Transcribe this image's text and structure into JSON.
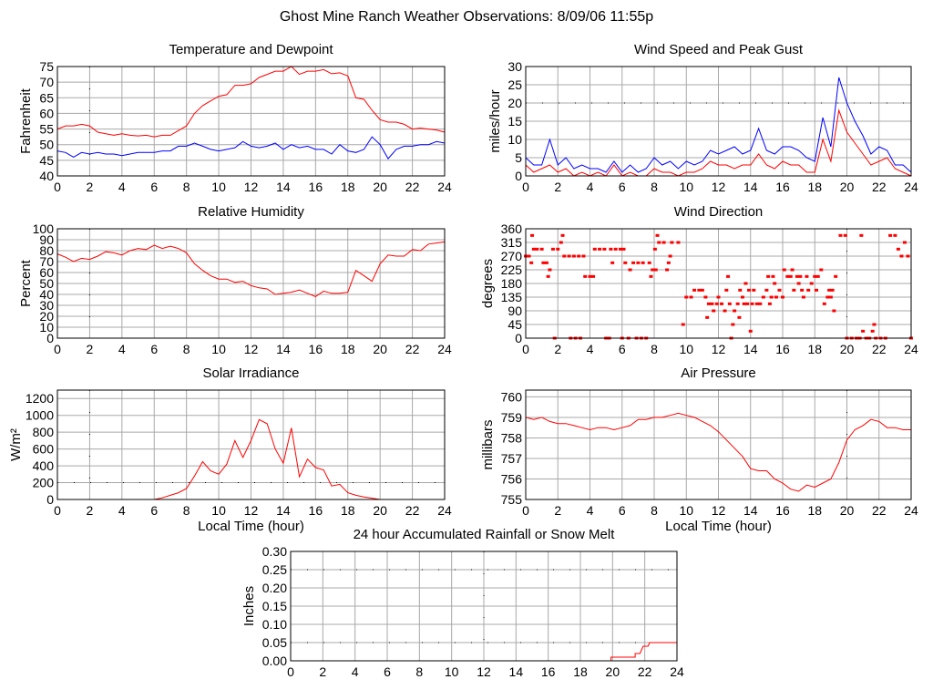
{
  "page_title": "Ghost Mine Ranch Weather Observations: 8/09/06 11:55p",
  "colors": {
    "primary_series": "#ff0000",
    "secondary_series": "#0000ff",
    "grid": "#a8a8a8"
  },
  "chart_data": [
    {
      "id": "temperature",
      "type": "line",
      "title": "Temperature and Dewpoint",
      "xlabel": "",
      "ylabel": "Fahrenheit",
      "xlim": [
        0,
        24
      ],
      "ylim": [
        40,
        75
      ],
      "xticks": [
        "0",
        "2",
        "4",
        "6",
        "8",
        "10",
        "12",
        "14",
        "16",
        "18",
        "20",
        "22",
        "24"
      ],
      "yticks": [
        "40",
        "45",
        "50",
        "55",
        "60",
        "65",
        "70",
        "75"
      ],
      "dotted_x": [
        2
      ],
      "dotted_y": [],
      "x_step": 0.5,
      "series": [
        {
          "name": "Temperature",
          "color": "#ff0000",
          "values": [
            55,
            56,
            56,
            56.5,
            56,
            54,
            53.5,
            53,
            53.5,
            53,
            52.8,
            53,
            52.5,
            53,
            53,
            54.5,
            56,
            60,
            62.5,
            64,
            65.5,
            66,
            69,
            69,
            69.5,
            71.5,
            72.5,
            73.5,
            73.5,
            75,
            72.5,
            73.5,
            73.5,
            74,
            72.7,
            73,
            72,
            65,
            64.5,
            61,
            58,
            57.2,
            57.2,
            56.5,
            55,
            55.3,
            55,
            54.7,
            54
          ]
        },
        {
          "name": "Dewpoint",
          "color": "#0000ff",
          "values": [
            48,
            47.5,
            46,
            47.5,
            47,
            47.5,
            47,
            47,
            46.5,
            47,
            47.5,
            47.5,
            47.5,
            48,
            48,
            49.5,
            49.5,
            50.5,
            49.5,
            48.5,
            48,
            48.5,
            49,
            51,
            49.5,
            49,
            49.5,
            50.5,
            48.5,
            50,
            49,
            49.5,
            48.5,
            48.5,
            47,
            50,
            48,
            47.5,
            48.5,
            52.5,
            50,
            45.5,
            48.5,
            49.5,
            49.5,
            50,
            50,
            51,
            50.5
          ]
        }
      ]
    },
    {
      "id": "wind-speed",
      "type": "line",
      "title": "Wind Speed and Peak Gust",
      "xlabel": "",
      "ylabel": "miles/hour",
      "xlim": [
        0,
        24
      ],
      "ylim": [
        0,
        30
      ],
      "xticks": [
        "0",
        "2",
        "4",
        "6",
        "8",
        "10",
        "12",
        "14",
        "16",
        "18",
        "20",
        "22",
        "24"
      ],
      "yticks": [
        "0",
        "5",
        "10",
        "15",
        "20",
        "25",
        "30"
      ],
      "dotted_x": [],
      "dotted_y": [
        20
      ],
      "x_step": 0.5,
      "series": [
        {
          "name": "Peak Gust",
          "color": "#0000ff",
          "values": [
            5,
            3,
            3,
            10,
            3,
            5,
            2,
            3,
            2,
            2,
            1,
            4,
            1,
            3,
            1,
            2,
            5,
            3,
            4,
            2,
            4,
            3,
            4,
            7,
            6,
            7,
            8,
            6,
            7,
            13,
            7,
            6,
            8,
            8,
            7,
            5,
            4,
            16,
            8,
            27,
            20,
            15,
            11,
            6,
            8,
            7,
            3,
            3,
            1
          ]
        },
        {
          "name": "Wind Speed",
          "color": "#ff0000",
          "values": [
            3,
            1,
            2,
            3,
            1,
            2,
            0,
            1,
            0,
            1,
            0,
            3,
            0,
            1,
            0,
            0,
            2,
            1,
            1,
            0,
            1,
            1,
            2,
            4,
            3,
            3,
            2,
            3,
            3,
            6,
            3,
            2,
            4,
            3,
            3,
            1,
            1,
            10,
            4,
            18,
            12,
            9,
            6,
            3,
            4,
            5,
            2,
            1,
            0
          ]
        }
      ]
    },
    {
      "id": "humidity",
      "type": "line",
      "title": "Relative Humidity",
      "xlabel": "",
      "ylabel": "Percent",
      "xlim": [
        0,
        24
      ],
      "ylim": [
        0,
        100
      ],
      "xticks": [
        "0",
        "2",
        "4",
        "6",
        "8",
        "10",
        "12",
        "14",
        "16",
        "18",
        "20",
        "22",
        "24"
      ],
      "yticks": [
        "0",
        "10",
        "20",
        "30",
        "40",
        "50",
        "60",
        "70",
        "80",
        "90",
        "100"
      ],
      "dotted_x": [
        2
      ],
      "dotted_y": [],
      "x_step": 0.5,
      "series": [
        {
          "name": "Relative Humidity",
          "color": "#ff0000",
          "values": [
            77,
            74,
            70,
            73,
            72,
            75,
            79,
            78,
            76,
            80,
            82,
            81,
            85,
            82,
            84,
            82,
            78,
            68,
            62,
            57,
            54,
            54,
            51,
            52,
            48,
            46,
            45,
            40,
            41,
            42,
            44,
            41,
            38,
            43,
            41,
            41,
            42,
            62,
            57,
            52,
            68,
            76,
            75,
            75,
            81,
            80,
            86,
            87,
            88
          ]
        }
      ]
    },
    {
      "id": "wind-direction",
      "type": "scatter",
      "title": "Wind Direction",
      "xlabel": "",
      "ylabel": "degrees",
      "xlim": [
        0,
        24
      ],
      "ylim": [
        0,
        360
      ],
      "xticks": [
        "0",
        "2",
        "4",
        "6",
        "8",
        "10",
        "12",
        "14",
        "16",
        "18",
        "20",
        "22",
        "24"
      ],
      "yticks": [
        "0",
        "45",
        "90",
        "135",
        "180",
        "225",
        "270",
        "315",
        "360"
      ],
      "dotted_x": [
        20
      ],
      "dotted_y": [],
      "points": [
        [
          0,
          270
        ],
        [
          0.2,
          270
        ],
        [
          0.35,
          248
        ],
        [
          0.4,
          338
        ],
        [
          0.5,
          293
        ],
        [
          0.7,
          293
        ],
        [
          1,
          293
        ],
        [
          1.1,
          248
        ],
        [
          1.3,
          248
        ],
        [
          1.4,
          203
        ],
        [
          1.5,
          225
        ],
        [
          1.7,
          293
        ],
        [
          1.8,
          0
        ],
        [
          2,
          293
        ],
        [
          2.2,
          315
        ],
        [
          2.3,
          338
        ],
        [
          2.4,
          270
        ],
        [
          2.7,
          270
        ],
        [
          2.8,
          0
        ],
        [
          3,
          270
        ],
        [
          3.1,
          0
        ],
        [
          3.3,
          270
        ],
        [
          3.4,
          0
        ],
        [
          3.6,
          270
        ],
        [
          3.7,
          203
        ],
        [
          4,
          203
        ],
        [
          4.2,
          203
        ],
        [
          4.3,
          293
        ],
        [
          4.6,
          293
        ],
        [
          4.9,
          293
        ],
        [
          5,
          0
        ],
        [
          5.2,
          0
        ],
        [
          5.3,
          293
        ],
        [
          5.4,
          248
        ],
        [
          5.6,
          293
        ],
        [
          5.9,
          293
        ],
        [
          6,
          0
        ],
        [
          6.1,
          293
        ],
        [
          6.2,
          248
        ],
        [
          6.4,
          0
        ],
        [
          6.5,
          225
        ],
        [
          6.7,
          248
        ],
        [
          6.9,
          0
        ],
        [
          7,
          248
        ],
        [
          7.2,
          0
        ],
        [
          7.3,
          248
        ],
        [
          7.5,
          0
        ],
        [
          7.7,
          248
        ],
        [
          7.8,
          203
        ],
        [
          7.9,
          225
        ],
        [
          8.05,
          293
        ],
        [
          8.1,
          225
        ],
        [
          8.2,
          338
        ],
        [
          8.3,
          315
        ],
        [
          8.6,
          315
        ],
        [
          8.8,
          225
        ],
        [
          8.9,
          248
        ],
        [
          9,
          270
        ],
        [
          9.1,
          315
        ],
        [
          9.5,
          315
        ],
        [
          9.8,
          45
        ],
        [
          10,
          135
        ],
        [
          10.3,
          135
        ],
        [
          10.5,
          158
        ],
        [
          10.8,
          158
        ],
        [
          11,
          158
        ],
        [
          11.2,
          135
        ],
        [
          11.3,
          68
        ],
        [
          11.4,
          113
        ],
        [
          11.6,
          113
        ],
        [
          11.7,
          90
        ],
        [
          11.9,
          113
        ],
        [
          12,
          135
        ],
        [
          12.2,
          113
        ],
        [
          12.4,
          90
        ],
        [
          12.5,
          158
        ],
        [
          12.6,
          203
        ],
        [
          12.7,
          113
        ],
        [
          12.8,
          0
        ],
        [
          12.9,
          45
        ],
        [
          13,
          90
        ],
        [
          13.2,
          113
        ],
        [
          13.3,
          68
        ],
        [
          13.35,
          158
        ],
        [
          13.5,
          135
        ],
        [
          13.6,
          113
        ],
        [
          13.7,
          180
        ],
        [
          13.8,
          113
        ],
        [
          13.9,
          158
        ],
        [
          14,
          23
        ],
        [
          14.1,
          113
        ],
        [
          14.2,
          158
        ],
        [
          14.4,
          113
        ],
        [
          14.6,
          113
        ],
        [
          14.8,
          135
        ],
        [
          15,
          158
        ],
        [
          15.1,
          203
        ],
        [
          15.2,
          113
        ],
        [
          15.3,
          135
        ],
        [
          15.4,
          203
        ],
        [
          15.5,
          180
        ],
        [
          15.6,
          135
        ],
        [
          15.8,
          158
        ],
        [
          16,
          135
        ],
        [
          16.1,
          225
        ],
        [
          16.3,
          203
        ],
        [
          16.5,
          203
        ],
        [
          16.6,
          225
        ],
        [
          16.7,
          158
        ],
        [
          16.9,
          203
        ],
        [
          17,
          180
        ],
        [
          17.1,
          203
        ],
        [
          17.2,
          158
        ],
        [
          17.3,
          135
        ],
        [
          17.5,
          203
        ],
        [
          17.6,
          158
        ],
        [
          17.8,
          180
        ],
        [
          18,
          203
        ],
        [
          18.1,
          158
        ],
        [
          18.2,
          203
        ],
        [
          18.4,
          225
        ],
        [
          18.6,
          113
        ],
        [
          18.8,
          135
        ],
        [
          18.9,
          158
        ],
        [
          19,
          135
        ],
        [
          19.1,
          158
        ],
        [
          19.2,
          90
        ],
        [
          19.3,
          203
        ],
        [
          19.6,
          338
        ],
        [
          19.9,
          338
        ],
        [
          20,
          0
        ],
        [
          20.3,
          0
        ],
        [
          20.6,
          0
        ],
        [
          20.8,
          0
        ],
        [
          20.9,
          338
        ],
        [
          21,
          23
        ],
        [
          21.2,
          0
        ],
        [
          21.4,
          0
        ],
        [
          21.6,
          23
        ],
        [
          21.7,
          45
        ],
        [
          21.8,
          0
        ],
        [
          22.1,
          0
        ],
        [
          22.4,
          0
        ],
        [
          22.7,
          338
        ],
        [
          23,
          338
        ],
        [
          23.2,
          293
        ],
        [
          23.4,
          270
        ],
        [
          23.6,
          315
        ],
        [
          23.8,
          270
        ],
        [
          24,
          0
        ]
      ],
      "color": "#ff0000"
    },
    {
      "id": "solar",
      "type": "line",
      "title": "Solar Irradiance",
      "xlabel": "Local Time (hour)",
      "ylabel": "W/m²",
      "xlim": [
        0,
        24
      ],
      "ylim": [
        0,
        1300
      ],
      "xticks": [
        "0",
        "2",
        "4",
        "6",
        "8",
        "10",
        "12",
        "14",
        "16",
        "18",
        "20",
        "22",
        "24"
      ],
      "yticks": [
        "0",
        "200",
        "400",
        "600",
        "800",
        "1000",
        "1200"
      ],
      "dotted_x": [
        2
      ],
      "dotted_y": [
        200
      ],
      "x_step": 0.5,
      "series": [
        {
          "name": "Solar Irradiance",
          "color": "#ff0000",
          "values": [
            0,
            0,
            0,
            0,
            0,
            0,
            0,
            0,
            0,
            0,
            0,
            0,
            0,
            20,
            50,
            80,
            130,
            280,
            450,
            340,
            300,
            420,
            700,
            500,
            700,
            950,
            900,
            600,
            430,
            850,
            270,
            480,
            380,
            350,
            160,
            180,
            80,
            50,
            30,
            15,
            0,
            0,
            0,
            0,
            0,
            0,
            0,
            0,
            0
          ]
        }
      ]
    },
    {
      "id": "pressure",
      "type": "line",
      "title": "Air Pressure",
      "xlabel": "Local Time (hour)",
      "ylabel": "millibars",
      "xlim": [
        0,
        24
      ],
      "ylim": [
        755,
        760.33
      ],
      "xticks": [
        "0",
        "2",
        "4",
        "6",
        "8",
        "10",
        "12",
        "14",
        "16",
        "18",
        "20",
        "22",
        "24"
      ],
      "yticks": [
        "755",
        "756",
        "757",
        "758",
        "759",
        "760"
      ],
      "dotted_x": [
        20
      ],
      "dotted_y": [],
      "x_step": 0.5,
      "series": [
        {
          "name": "Air Pressure",
          "color": "#ff0000",
          "values": [
            759,
            758.9,
            759,
            758.8,
            758.7,
            758.7,
            758.6,
            758.5,
            758.4,
            758.5,
            758.5,
            758.4,
            758.5,
            758.6,
            758.9,
            758.9,
            759,
            759,
            759.1,
            759.2,
            759.1,
            759,
            758.8,
            758.6,
            758.3,
            757.9,
            757.5,
            757.1,
            756.5,
            756.4,
            756.4,
            756,
            755.8,
            755.5,
            755.4,
            755.7,
            755.6,
            755.8,
            756,
            756.8,
            757.9,
            758.4,
            758.6,
            758.9,
            758.8,
            758.5,
            758.5,
            758.4,
            758.4
          ]
        }
      ]
    },
    {
      "id": "rainfall",
      "type": "line",
      "title": "24 hour Accumulated Rainfall or Snow Melt",
      "xlabel": "",
      "ylabel": "Inches",
      "xlim": [
        0,
        24
      ],
      "ylim": [
        0,
        0.3
      ],
      "xticks": [
        "0",
        "2",
        "4",
        "6",
        "8",
        "10",
        "12",
        "14",
        "16",
        "18",
        "20",
        "22",
        "24"
      ],
      "yticks": [
        "0.00",
        "0.05",
        "0.10",
        "0.15",
        "0.20",
        "0.25",
        "0.30"
      ],
      "dotted_x": [
        12
      ],
      "dotted_y": [
        0.05,
        0.25
      ],
      "series": [
        {
          "name": "Accumulated Rainfall",
          "color": "#ff0000",
          "points": [
            [
              0,
              0
            ],
            [
              19.9,
              0
            ],
            [
              19.9,
              0.01
            ],
            [
              21.4,
              0.01
            ],
            [
              21.4,
              0.02
            ],
            [
              21.7,
              0.02
            ],
            [
              21.8,
              0.03
            ],
            [
              21.9,
              0.04
            ],
            [
              22.2,
              0.04
            ],
            [
              22.3,
              0.05
            ],
            [
              24,
              0.05
            ]
          ]
        }
      ]
    }
  ]
}
